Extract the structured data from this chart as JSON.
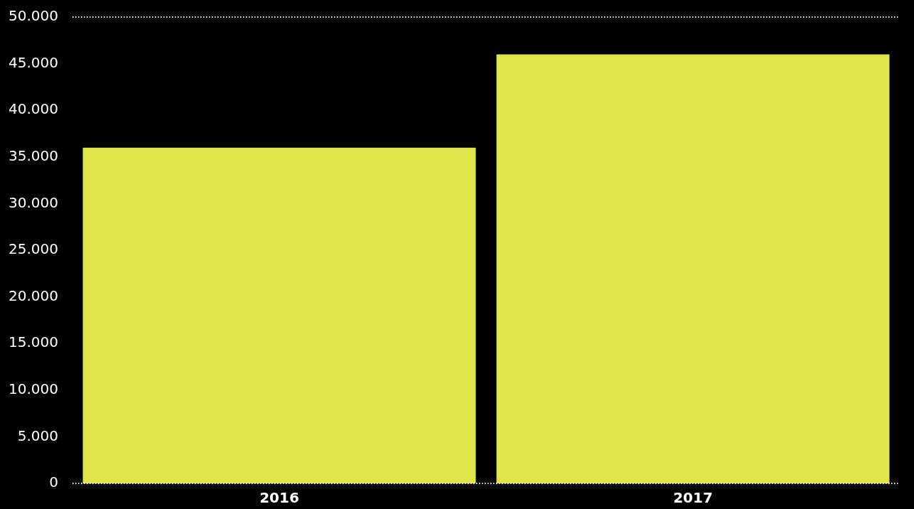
{
  "chart_data": {
    "type": "bar",
    "categories": [
      "2016",
      "2017"
    ],
    "values": [
      36000,
      46000
    ],
    "color": "#dfe64a",
    "ylim": [
      0,
      50000
    ],
    "yticks": [
      0,
      {
        "value": 5000,
        "label": "5.000"
      },
      {
        "value": 10000,
        "label": "10.000"
      },
      {
        "value": 15000,
        "label": "15.000"
      },
      {
        "value": 20000,
        "label": "20.000"
      },
      {
        "value": 25000,
        "label": "25.000"
      },
      {
        "value": 30000,
        "label": "30.000"
      },
      {
        "value": 35000,
        "label": "35.000"
      },
      {
        "value": 40000,
        "label": "40.000"
      },
      {
        "value": 45000,
        "label": "45.000"
      },
      {
        "value": 50000,
        "label": "50.000"
      }
    ],
    "ref_lines": [
      {
        "axis": "y",
        "value": 0,
        "color": "#ffffff",
        "line_style": "dotted"
      },
      {
        "axis": "y",
        "value": 50000,
        "color": "#ffffff",
        "line_style": "dotted"
      }
    ]
  }
}
